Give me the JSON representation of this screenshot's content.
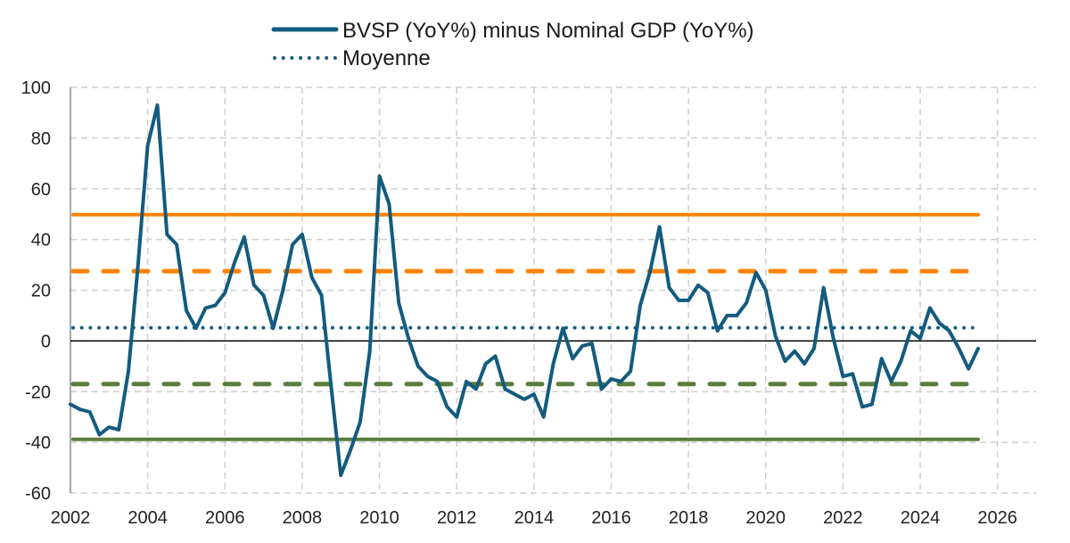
{
  "chart_data": {
    "type": "line",
    "title": "",
    "xlabel": "",
    "ylabel": "",
    "xlim": [
      2002,
      2027
    ],
    "ylim": [
      -60,
      100
    ],
    "x_ticks": [
      2002,
      2004,
      2006,
      2008,
      2010,
      2012,
      2014,
      2016,
      2018,
      2020,
      2022,
      2024,
      2026
    ],
    "y_ticks": [
      -60,
      -40,
      -20,
      0,
      20,
      40,
      60,
      80,
      100
    ],
    "x_tick_labels": [
      "2002",
      "2004",
      "2006",
      "2008",
      "2010",
      "2012",
      "2014",
      "2016",
      "2018",
      "2020",
      "2022",
      "2024",
      "2026"
    ],
    "y_tick_labels": [
      "-60",
      "-40",
      "-20",
      "0",
      "20",
      "40",
      "60",
      "80",
      "100"
    ],
    "grid": true,
    "legend_position": "top-center",
    "legend": [
      {
        "label": "BVSP (YoY%) minus Nominal GDP (YoY%)",
        "style": "solid",
        "color": "#135b7e"
      },
      {
        "label": "Moyenne",
        "style": "dotted",
        "color": "#135b7e"
      }
    ],
    "series": [
      {
        "name": "BVSP (YoY%) minus Nominal GDP (YoY%)",
        "color": "#135b7e",
        "style": "solid",
        "x_start": 2002.0,
        "x_step": 0.25,
        "values": [
          -25,
          -27,
          -28,
          -37,
          -34,
          -35,
          -12,
          30,
          77,
          93,
          42,
          38,
          12,
          5,
          13,
          14,
          19,
          31,
          41,
          22,
          18,
          5,
          20,
          38,
          42,
          25,
          18,
          -18,
          -53,
          -43,
          -32,
          -4,
          65,
          54,
          15,
          1,
          -10,
          -14,
          -16,
          -26,
          -30,
          -16,
          -19,
          -9,
          -6,
          -19,
          -21,
          -23,
          -21,
          -30,
          -9,
          5,
          -7,
          -2,
          -1,
          -19,
          -15,
          -16,
          -12,
          14,
          27,
          45,
          21,
          16,
          16,
          22,
          19,
          4,
          10,
          10,
          15,
          27,
          20,
          2,
          -8,
          -4,
          -9,
          -3,
          21,
          1,
          -14,
          -13,
          -26,
          -25,
          -7,
          -16,
          -8,
          4,
          1,
          13,
          7,
          4,
          -3,
          -11,
          -3
        ]
      }
    ],
    "reference_lines": [
      {
        "name": "Moyenne",
        "value": 5.2,
        "color": "#135b7e",
        "style": "dotted"
      },
      {
        "name": "upper-solid",
        "value": 49.8,
        "color": "#ff8200",
        "style": "solid"
      },
      {
        "name": "upper-dashed",
        "value": 27.5,
        "color": "#ff8200",
        "style": "dashed"
      },
      {
        "name": "lower-dashed",
        "value": -17,
        "color": "#5a7d3b",
        "style": "dashed"
      },
      {
        "name": "lower-solid",
        "value": -38.8,
        "color": "#5a7d3b",
        "style": "solid"
      }
    ],
    "reference_x_range": [
      2002,
      2025.5
    ],
    "zero_line": {
      "value": 0,
      "color": "#000000"
    }
  }
}
